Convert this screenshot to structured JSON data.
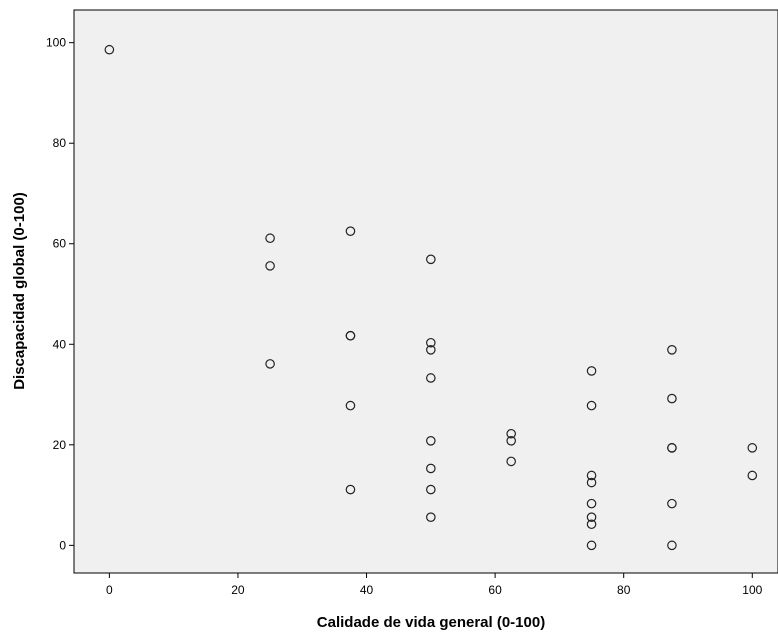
{
  "chart_data": {
    "type": "scatter",
    "xlabel": "Calidade de vida general (0-100)",
    "ylabel": "Discapacidad global (0-100)",
    "xlim": [
      -5.5,
      104
    ],
    "ylim": [
      -5.5,
      106.5
    ],
    "x_ticks": [
      0,
      20,
      40,
      60,
      80,
      100
    ],
    "y_ticks": [
      0,
      20,
      40,
      60,
      80,
      100
    ],
    "grid": false,
    "plot_background": "#f0f0f0",
    "marker": "hollow-circle",
    "points": [
      {
        "x": 0,
        "y": 98.6
      },
      {
        "x": 25,
        "y": 61.1
      },
      {
        "x": 25,
        "y": 55.6
      },
      {
        "x": 25,
        "y": 36.1
      },
      {
        "x": 37.5,
        "y": 62.5
      },
      {
        "x": 37.5,
        "y": 41.7
      },
      {
        "x": 37.5,
        "y": 41.7
      },
      {
        "x": 37.5,
        "y": 27.8
      },
      {
        "x": 37.5,
        "y": 11.1
      },
      {
        "x": 50,
        "y": 56.9
      },
      {
        "x": 50,
        "y": 40.3
      },
      {
        "x": 50,
        "y": 38.9
      },
      {
        "x": 50,
        "y": 33.3
      },
      {
        "x": 50,
        "y": 20.8
      },
      {
        "x": 50,
        "y": 15.3
      },
      {
        "x": 50,
        "y": 11.1
      },
      {
        "x": 50,
        "y": 5.6
      },
      {
        "x": 62.5,
        "y": 22.2
      },
      {
        "x": 62.5,
        "y": 20.8
      },
      {
        "x": 62.5,
        "y": 16.7
      },
      {
        "x": 75,
        "y": 34.7
      },
      {
        "x": 75,
        "y": 27.8
      },
      {
        "x": 75,
        "y": 13.9
      },
      {
        "x": 75,
        "y": 12.5
      },
      {
        "x": 75,
        "y": 8.3
      },
      {
        "x": 75,
        "y": 5.6
      },
      {
        "x": 75,
        "y": 4.2
      },
      {
        "x": 75,
        "y": 0
      },
      {
        "x": 87.5,
        "y": 38.9
      },
      {
        "x": 87.5,
        "y": 29.2
      },
      {
        "x": 87.5,
        "y": 19.4
      },
      {
        "x": 87.5,
        "y": 19.4
      },
      {
        "x": 87.5,
        "y": 8.3
      },
      {
        "x": 87.5,
        "y": 0
      },
      {
        "x": 100,
        "y": 19.4
      },
      {
        "x": 100,
        "y": 13.9
      }
    ]
  }
}
